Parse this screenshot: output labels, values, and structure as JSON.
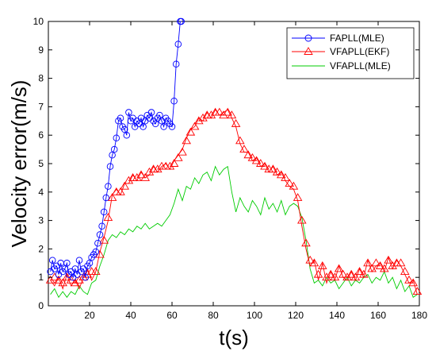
{
  "chart_data": {
    "type": "line",
    "xlabel": "t(s)",
    "ylabel": "Velocity error(m/s)",
    "xlim": [
      0,
      180
    ],
    "ylim": [
      0,
      10
    ],
    "xticks": [
      20,
      40,
      60,
      80,
      100,
      120,
      140,
      160,
      180
    ],
    "yticks": [
      0,
      1,
      2,
      3,
      4,
      5,
      6,
      7,
      8,
      9,
      10
    ],
    "grid": false,
    "legend_position": "top-right",
    "series": [
      {
        "name": "FAPLL(MLE)",
        "color": "#0000ff",
        "marker": "circle",
        "x": [
          1,
          2,
          3,
          4,
          5,
          6,
          7,
          8,
          9,
          10,
          11,
          12,
          13,
          14,
          15,
          16,
          17,
          18,
          19,
          20,
          21,
          22,
          23,
          24,
          25,
          26,
          27,
          28,
          29,
          30,
          31,
          32,
          33,
          34,
          35,
          36,
          37,
          38,
          39,
          40,
          41,
          42,
          43,
          44,
          45,
          46,
          47,
          48,
          49,
          50,
          51,
          52,
          53,
          54,
          55,
          56,
          57,
          58,
          59,
          60,
          61,
          62,
          63,
          64,
          64.5
        ],
        "y": [
          1.2,
          1.6,
          1.3,
          1.4,
          1.1,
          1.5,
          1.2,
          1.3,
          1.5,
          1.1,
          1.2,
          1.0,
          1.3,
          1.1,
          1.6,
          1.2,
          1.3,
          1.0,
          1.4,
          1.5,
          1.7,
          1.8,
          1.9,
          2.2,
          2.5,
          2.8,
          3.3,
          3.8,
          4.2,
          4.9,
          5.3,
          5.5,
          5.9,
          6.5,
          6.6,
          6.3,
          6.2,
          6.0,
          6.8,
          6.5,
          6.6,
          6.3,
          6.5,
          6.4,
          6.6,
          6.3,
          6.5,
          6.7,
          6.6,
          6.8,
          6.5,
          6.4,
          6.6,
          6.7,
          6.5,
          6.3,
          6.6,
          6.5,
          6.4,
          6.3,
          7.2,
          8.5,
          9.2,
          10.0,
          10.0
        ]
      },
      {
        "name": "VFAPLL(EKF)",
        "color": "#ff0000",
        "marker": "triangle",
        "x": [
          1,
          3,
          5,
          7,
          9,
          11,
          13,
          15,
          17,
          19,
          21,
          23,
          25,
          27,
          29,
          31,
          33,
          35,
          37,
          39,
          41,
          43,
          45,
          47,
          49,
          51,
          53,
          55,
          57,
          59,
          61,
          63,
          65,
          67,
          69,
          71,
          73,
          75,
          77,
          79,
          81,
          83,
          85,
          87,
          89,
          91,
          93,
          95,
          97,
          99,
          101,
          103,
          105,
          107,
          109,
          111,
          113,
          115,
          117,
          119,
          121,
          123,
          125,
          127,
          129,
          131,
          133,
          135,
          137,
          139,
          141,
          143,
          145,
          147,
          149,
          151,
          153,
          155,
          157,
          159,
          161,
          163,
          165,
          167,
          169,
          171,
          173,
          175,
          177,
          179
        ],
        "y": [
          0.9,
          1.0,
          0.9,
          0.8,
          1.0,
          0.9,
          0.8,
          0.9,
          1.0,
          1.1,
          1.2,
          1.2,
          1.8,
          2.3,
          3.1,
          3.8,
          4.0,
          4.0,
          4.2,
          4.4,
          4.5,
          4.5,
          4.6,
          4.5,
          4.7,
          4.8,
          4.8,
          4.9,
          4.9,
          4.9,
          5.0,
          5.2,
          5.4,
          5.8,
          6.1,
          6.3,
          6.5,
          6.6,
          6.7,
          6.7,
          6.8,
          6.8,
          6.7,
          6.8,
          6.7,
          6.4,
          5.8,
          5.5,
          5.3,
          5.2,
          5.1,
          5.0,
          4.9,
          4.8,
          4.8,
          4.7,
          4.6,
          4.5,
          4.3,
          4.2,
          3.8,
          3.0,
          2.2,
          1.6,
          1.5,
          1.1,
          1.4,
          1.0,
          1.1,
          1.0,
          1.3,
          1.1,
          1.0,
          1.1,
          1.0,
          1.2,
          1.1,
          1.5,
          1.3,
          1.5,
          1.4,
          1.3,
          1.6,
          1.4,
          1.5,
          1.5,
          1.2,
          0.9,
          0.8,
          0.5
        ],
        "line_y": [
          0.9,
          0.7,
          1.0,
          0.6,
          1.1,
          0.7,
          0.9,
          0.6,
          1.0,
          1.3,
          0.9,
          1.2,
          1.9,
          2.4,
          3.0,
          3.9,
          4.1,
          3.9,
          4.3,
          4.3,
          4.6,
          4.4,
          4.7,
          4.5,
          4.6,
          4.9,
          4.7,
          4.9,
          5.0,
          4.8,
          5.1,
          5.3,
          5.5,
          5.9,
          6.2,
          6.3,
          6.6,
          6.5,
          6.8,
          6.6,
          6.9,
          6.7,
          6.8,
          6.9,
          6.6,
          6.3,
          5.7,
          5.4,
          5.4,
          5.1,
          5.2,
          4.9,
          5.0,
          4.7,
          4.9,
          4.6,
          4.7,
          4.4,
          4.2,
          4.1,
          3.7,
          2.8,
          2.0,
          1.4,
          1.6,
          0.9,
          1.5,
          0.8,
          1.2,
          0.9,
          1.4,
          1.0,
          0.9,
          1.2,
          0.9,
          1.3,
          1.0,
          1.6,
          1.2,
          1.4,
          1.5,
          1.2,
          1.7,
          1.3,
          1.6,
          1.4,
          1.1,
          0.8,
          0.9,
          0.4
        ]
      },
      {
        "name": "VFAPLL(MLE)",
        "color": "#00cc00",
        "marker": "none",
        "x": [
          1,
          3,
          5,
          7,
          9,
          11,
          13,
          15,
          17,
          19,
          21,
          23,
          25,
          27,
          29,
          31,
          33,
          35,
          37,
          39,
          41,
          43,
          45,
          47,
          49,
          51,
          53,
          55,
          57,
          59,
          61,
          63,
          65,
          67,
          69,
          71,
          73,
          75,
          77,
          79,
          81,
          83,
          85,
          87,
          89,
          91,
          93,
          95,
          97,
          99,
          101,
          103,
          105,
          107,
          109,
          111,
          113,
          115,
          117,
          119,
          121,
          123,
          125,
          127,
          129,
          131,
          133,
          135,
          137,
          139,
          141,
          143,
          145,
          147,
          149,
          151,
          153,
          155,
          157,
          159,
          161,
          163,
          165,
          167,
          169,
          171,
          173,
          175,
          177,
          179
        ],
        "y": [
          0.4,
          0.6,
          0.3,
          0.5,
          0.3,
          0.5,
          0.4,
          0.7,
          0.5,
          0.4,
          0.8,
          0.9,
          1.4,
          1.8,
          2.3,
          2.5,
          2.4,
          2.6,
          2.5,
          2.7,
          2.6,
          2.8,
          2.7,
          2.9,
          2.7,
          2.8,
          2.9,
          2.8,
          3.0,
          3.2,
          3.6,
          4.1,
          3.7,
          4.2,
          4.1,
          4.5,
          4.3,
          4.6,
          4.7,
          4.4,
          4.9,
          4.6,
          4.8,
          4.9,
          4.0,
          3.3,
          3.8,
          3.5,
          3.3,
          3.7,
          3.5,
          3.2,
          3.8,
          3.4,
          3.6,
          3.3,
          3.7,
          3.2,
          3.5,
          3.6,
          3.5,
          3.1,
          2.3,
          1.3,
          0.8,
          0.9,
          0.7,
          1.0,
          0.8,
          0.9,
          0.6,
          0.8,
          1.0,
          0.7,
          0.9,
          0.8,
          1.0,
          1.1,
          0.8,
          1.0,
          0.9,
          1.2,
          0.8,
          1.0,
          0.6,
          0.9,
          0.5,
          0.7,
          0.3,
          0.4
        ]
      }
    ]
  }
}
